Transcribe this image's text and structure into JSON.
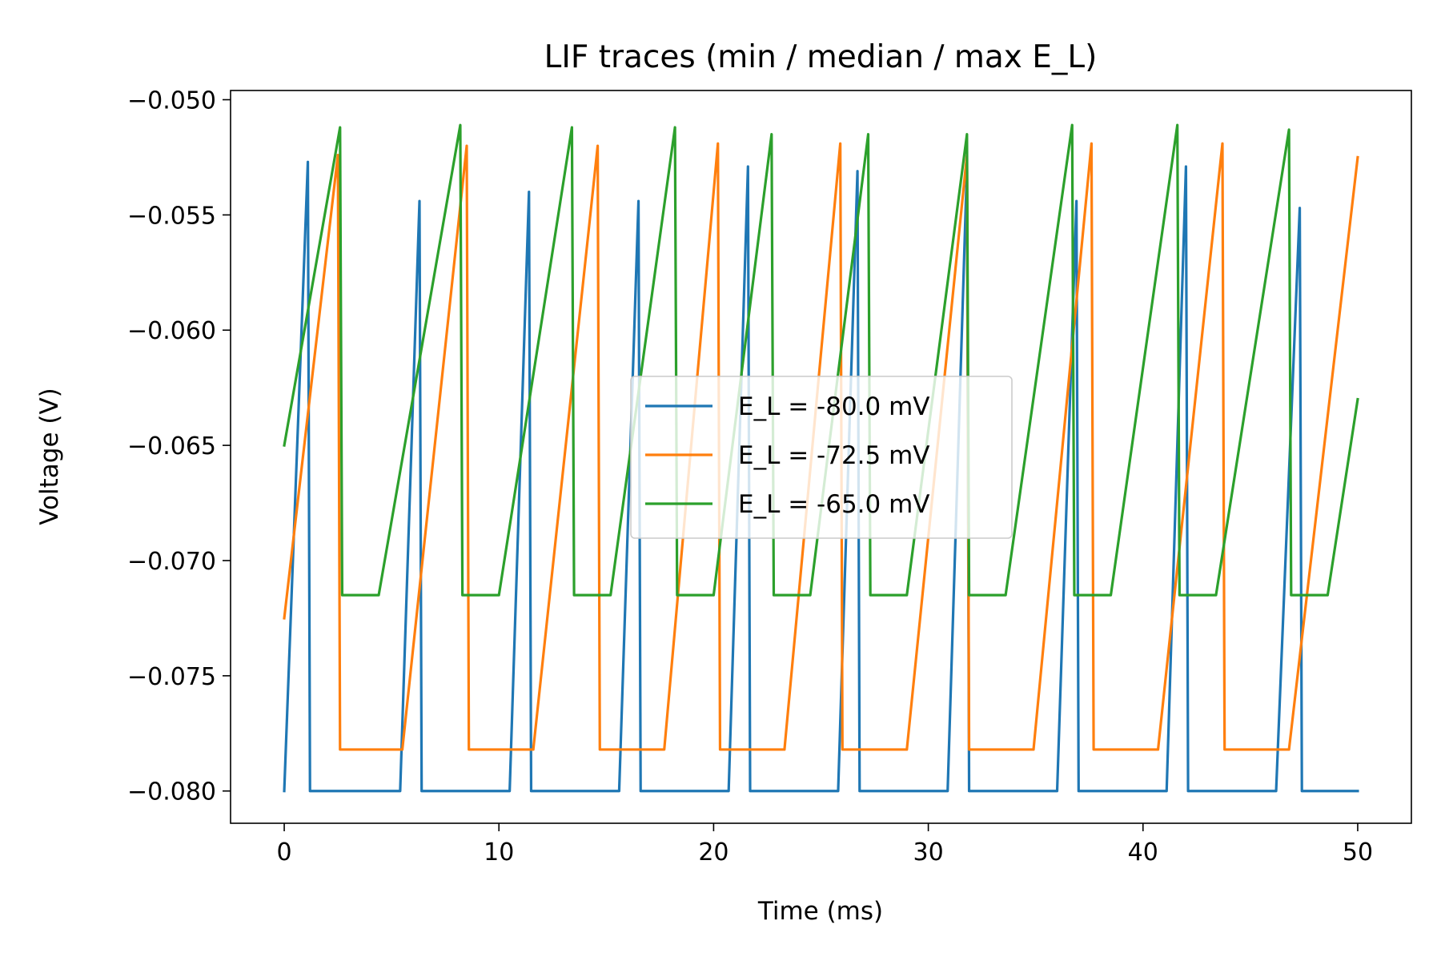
{
  "chart_data": {
    "type": "line",
    "title": "LIF traces (min / median / max E_L)",
    "xlabel": "Time (ms)",
    "ylabel": "Voltage (V)",
    "xlim": [
      -2.5,
      52.5
    ],
    "ylim": [
      -0.0814,
      -0.0496
    ],
    "xticks": [
      0,
      10,
      20,
      30,
      40,
      50
    ],
    "xtick_labels": [
      "0",
      "10",
      "20",
      "30",
      "40",
      "50"
    ],
    "yticks": [
      -0.08,
      -0.075,
      -0.07,
      -0.065,
      -0.06,
      -0.055,
      -0.05
    ],
    "ytick_labels": [
      "−0.080",
      "−0.075",
      "−0.070",
      "−0.065",
      "−0.060",
      "−0.055",
      "−0.050"
    ],
    "grid": false,
    "legend_position": "center-right",
    "series": [
      {
        "name": "E_L = -80.0 mV",
        "color": "#1f77b4",
        "x": [
          0,
          1.1,
          1.2,
          5.4,
          6.3,
          6.4,
          10.5,
          11.4,
          11.5,
          15.6,
          16.5,
          16.6,
          20.7,
          21.6,
          21.7,
          25.8,
          26.7,
          26.8,
          30.9,
          31.8,
          31.9,
          36.0,
          36.9,
          37.0,
          41.1,
          42.0,
          42.1,
          46.2,
          47.3,
          47.4,
          50
        ],
        "y": [
          -0.08,
          -0.0527,
          -0.08,
          -0.08,
          -0.0544,
          -0.08,
          -0.08,
          -0.054,
          -0.08,
          -0.08,
          -0.0544,
          -0.08,
          -0.08,
          -0.0529,
          -0.08,
          -0.08,
          -0.0531,
          -0.08,
          -0.08,
          -0.0529,
          -0.08,
          -0.08,
          -0.0544,
          -0.08,
          -0.08,
          -0.0529,
          -0.08,
          -0.08,
          -0.0547,
          -0.08,
          -0.08
        ]
      },
      {
        "name": "E_L = -72.5 mV",
        "color": "#ff7f0e",
        "x": [
          0,
          2.5,
          2.6,
          5.5,
          8.5,
          8.6,
          11.6,
          14.6,
          14.7,
          17.7,
          20.2,
          20.3,
          23.3,
          25.9,
          26.0,
          29.0,
          31.8,
          31.9,
          34.9,
          37.6,
          37.7,
          40.7,
          43.7,
          43.8,
          46.8,
          50
        ],
        "y": [
          -0.0725,
          -0.0524,
          -0.0782,
          -0.0782,
          -0.052,
          -0.0782,
          -0.0782,
          -0.052,
          -0.0782,
          -0.0782,
          -0.0519,
          -0.0782,
          -0.0782,
          -0.0519,
          -0.0782,
          -0.0782,
          -0.0524,
          -0.0782,
          -0.0782,
          -0.0519,
          -0.0782,
          -0.0782,
          -0.0519,
          -0.0782,
          -0.0782,
          -0.0525
        ]
      },
      {
        "name": "E_L = -65.0 mV",
        "color": "#2ca02c",
        "x": [
          0,
          2.6,
          2.7,
          4.4,
          8.2,
          8.3,
          10.0,
          13.4,
          13.5,
          15.2,
          18.2,
          18.3,
          20.0,
          22.7,
          22.8,
          24.5,
          27.2,
          27.3,
          29.0,
          31.8,
          31.9,
          33.6,
          36.7,
          36.8,
          38.5,
          41.6,
          41.7,
          43.4,
          46.8,
          46.9,
          48.6,
          50
        ],
        "y": [
          -0.065,
          -0.0512,
          -0.0715,
          -0.0715,
          -0.0511,
          -0.0715,
          -0.0715,
          -0.0512,
          -0.0715,
          -0.0715,
          -0.0512,
          -0.0715,
          -0.0715,
          -0.0515,
          -0.0715,
          -0.0715,
          -0.0515,
          -0.0715,
          -0.0715,
          -0.0515,
          -0.0715,
          -0.0715,
          -0.0511,
          -0.0715,
          -0.0715,
          -0.0511,
          -0.0715,
          -0.0715,
          -0.0513,
          -0.0715,
          -0.0715,
          -0.063
        ]
      }
    ]
  }
}
